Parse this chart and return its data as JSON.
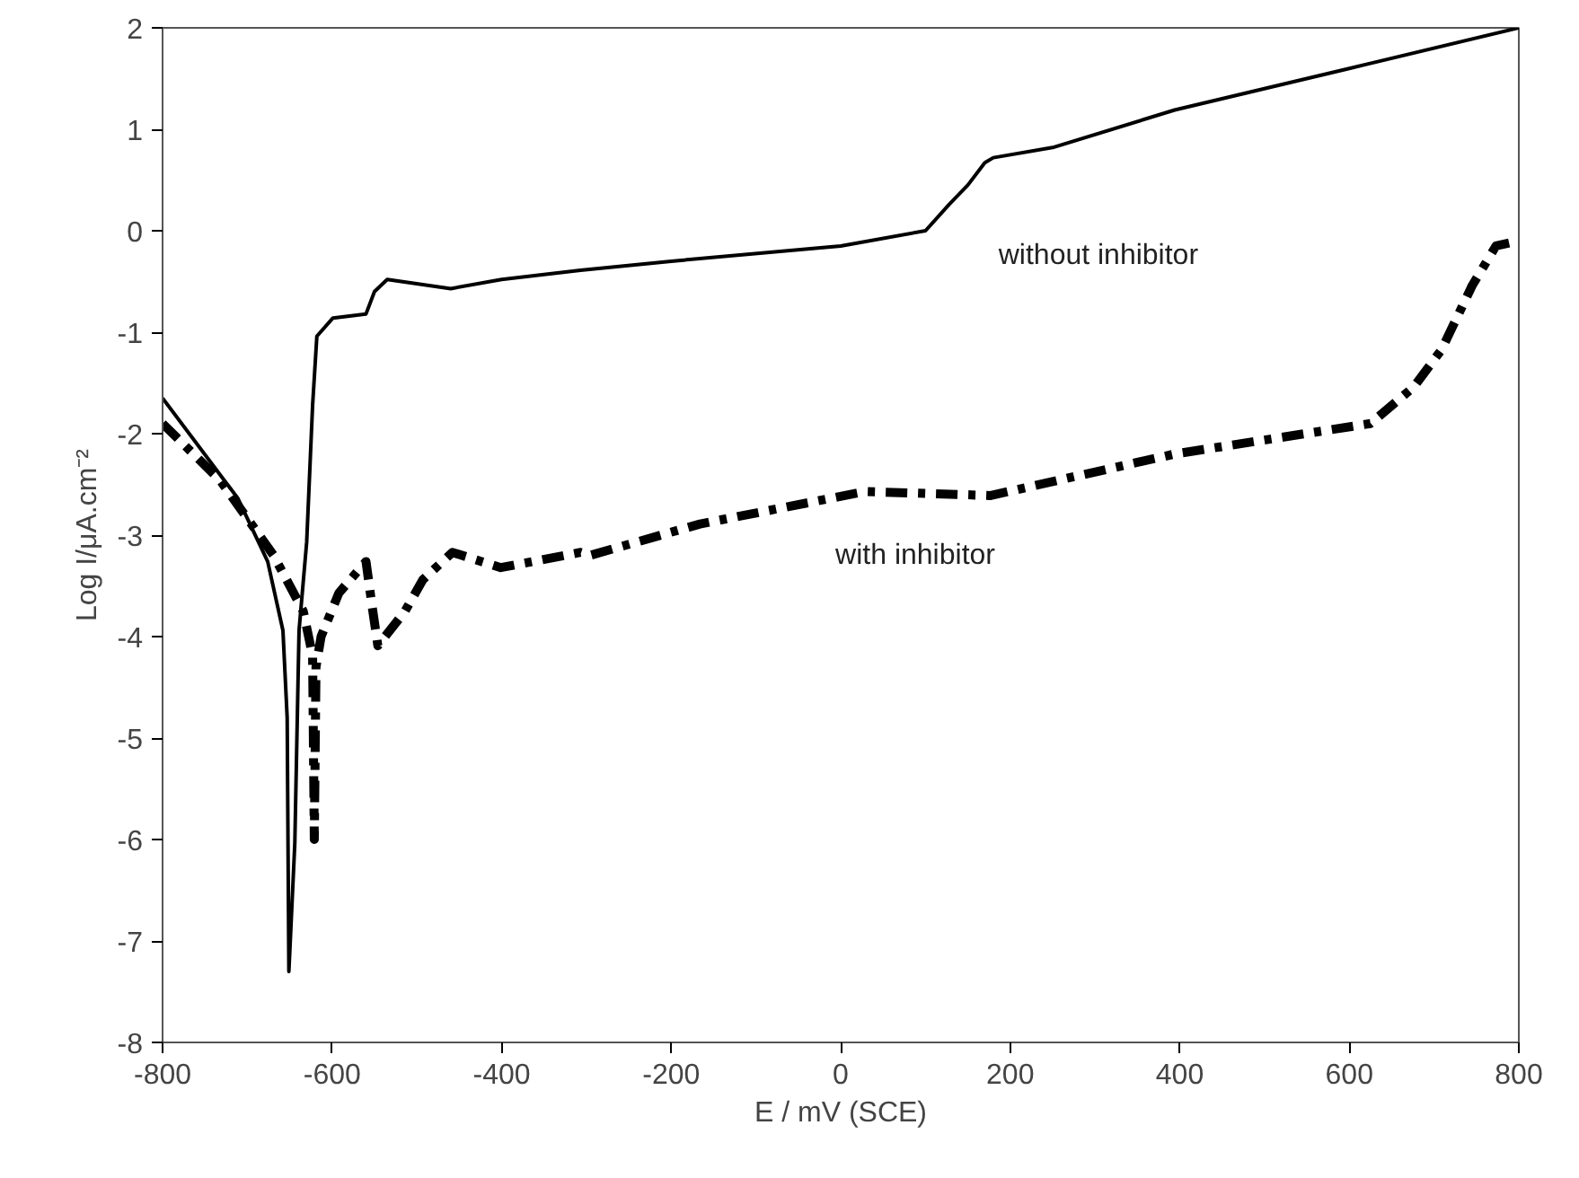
{
  "chart_data": {
    "type": "line",
    "xlabel": "E / mV (SCE)",
    "ylabel": "Log I/μA.cm⁻²",
    "xlim": [
      -800,
      800
    ],
    "ylim": [
      -8,
      2
    ],
    "xticks": [
      -800,
      -600,
      -400,
      -200,
      0,
      200,
      400,
      600,
      800
    ],
    "yticks": [
      -8,
      -7,
      -6,
      -5,
      -4,
      -3,
      -2,
      -1,
      0,
      1,
      2
    ],
    "grid": false,
    "marker": "none",
    "series": [
      {
        "color": "#000000",
        "line_style": "solid",
        "x": [
          -800,
          -711,
          -676,
          -658,
          -653,
          -651,
          -644,
          -639,
          -630,
          -623,
          -618,
          -599,
          -560,
          -550,
          -535,
          -460,
          -400,
          -307,
          -200,
          -27,
          0,
          100,
          128,
          150,
          170,
          180,
          250,
          394,
          600,
          800
        ],
        "values": [
          -1.65,
          -2.64,
          -3.26,
          -3.94,
          -4.8,
          -7.3,
          -6.04,
          -3.94,
          -3.07,
          -1.72,
          -1.04,
          -0.86,
          -0.82,
          -0.6,
          -0.48,
          -0.57,
          -0.48,
          -0.39,
          -0.3,
          -0.17,
          -0.15,
          0.0,
          0.26,
          0.45,
          0.67,
          0.72,
          0.82,
          1.19,
          1.6,
          2.0
        ]
      },
      {
        "color": "#000000",
        "line_style": "dashdot",
        "x": [
          -800,
          -732,
          -669,
          -634,
          -623,
          -621,
          -619,
          -613,
          -592,
          -560,
          -553,
          -546,
          -514,
          -493,
          -458,
          -401,
          -307,
          -296,
          -166,
          29,
          177,
          394,
          625,
          676,
          709,
          745,
          773,
          800
        ],
        "values": [
          -1.9,
          -2.46,
          -3.2,
          -3.75,
          -4.19,
          -6.0,
          -4.3,
          -4.0,
          -3.57,
          -3.26,
          -3.69,
          -4.09,
          -3.75,
          -3.44,
          -3.17,
          -3.32,
          -3.17,
          -3.2,
          -2.89,
          -2.57,
          -2.61,
          -2.2,
          -1.9,
          -1.54,
          -1.17,
          -0.54,
          -0.15,
          -0.1
        ]
      }
    ],
    "annotations": [
      "without inhibitor",
      "with inhibitor"
    ]
  }
}
